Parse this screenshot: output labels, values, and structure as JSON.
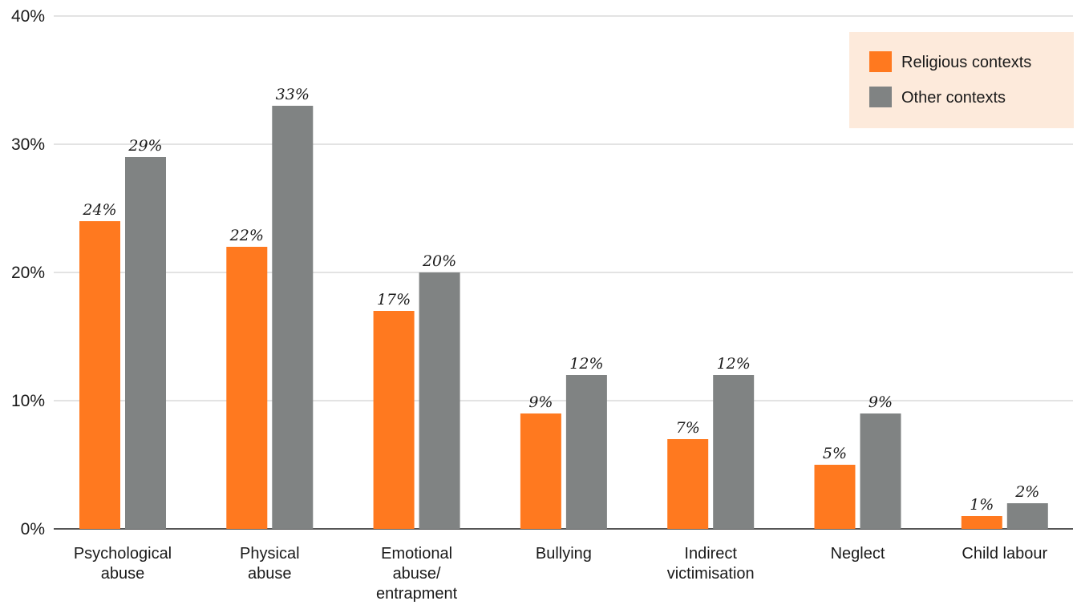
{
  "chart_data": {
    "type": "bar",
    "categories": [
      [
        "Psychological",
        "abuse"
      ],
      [
        "Physical",
        "abuse"
      ],
      [
        "Emotional",
        "abuse/",
        "entrapment"
      ],
      [
        "Bullying"
      ],
      [
        "Indirect",
        "victimisation"
      ],
      [
        "Neglect"
      ],
      [
        "Child labour"
      ]
    ],
    "series": [
      {
        "name": "Religious contexts",
        "color": "#FF791F",
        "values": [
          24,
          22,
          17,
          9,
          7,
          5,
          1
        ]
      },
      {
        "name": "Other contexts",
        "color": "#808383",
        "values": [
          29,
          33,
          20,
          12,
          12,
          9,
          2
        ]
      }
    ],
    "ylim": [
      0,
      40
    ],
    "yticks": [
      0,
      10,
      20,
      30,
      40
    ],
    "ytick_labels": [
      "0%",
      "10%",
      "20%",
      "30%",
      "40%"
    ],
    "value_suffix": "%",
    "grid": true,
    "legend_position": "top-right",
    "legend_background": "#FDEADB",
    "gridline_color": "#e3e3e3",
    "axis_color": "#555555"
  }
}
